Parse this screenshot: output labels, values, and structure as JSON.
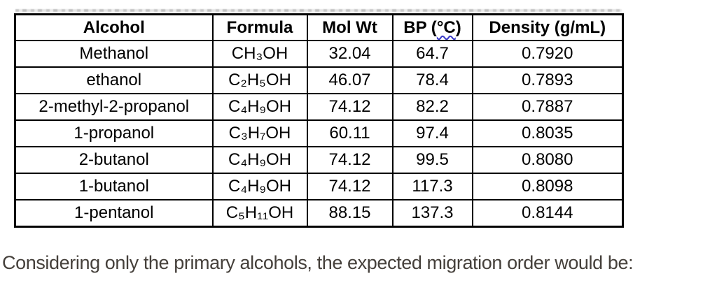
{
  "table": {
    "headers": {
      "alcohol": "Alcohol",
      "formula": "Formula",
      "mol_wt": "Mol Wt",
      "bp_prefix": "BP (",
      "bp_unit": "°C",
      "bp_suffix": ")",
      "density": "Density (g/mL)"
    },
    "rows": [
      {
        "name": "Methanol",
        "formula": "CH₃OH",
        "mol_wt": "32.04",
        "bp": "64.7",
        "density": "0.7920"
      },
      {
        "name": "ethanol",
        "formula": "C₂H₅OH",
        "mol_wt": "46.07",
        "bp": "78.4",
        "density": "0.7893"
      },
      {
        "name": "2-methyl-2-propanol",
        "formula": "C₄H₉OH",
        "mol_wt": "74.12",
        "bp": "82.2",
        "density": "0.7887"
      },
      {
        "name": "1-propanol",
        "formula": "C₃H₇OH",
        "mol_wt": "60.11",
        "bp": "97.4",
        "density": "0.8035"
      },
      {
        "name": "2-butanol",
        "formula": "C₄H₉OH",
        "mol_wt": "74.12",
        "bp": "99.5",
        "density": "0.8080"
      },
      {
        "name": "1-butanol",
        "formula": "C₄H₉OH",
        "mol_wt": "74.12",
        "bp": "117.3",
        "density": "0.8098"
      },
      {
        "name": "1-pentanol",
        "formula": "C₅H₁₁OH",
        "mol_wt": "88.15",
        "bp": "137.3",
        "density": "0.8144"
      }
    ]
  },
  "caption": "Considering only the primary alcohols, the expected migration order would be:",
  "colors": {
    "border": "#000000",
    "squiggle": "#3a3ac8",
    "caption_text": "#45403b"
  }
}
